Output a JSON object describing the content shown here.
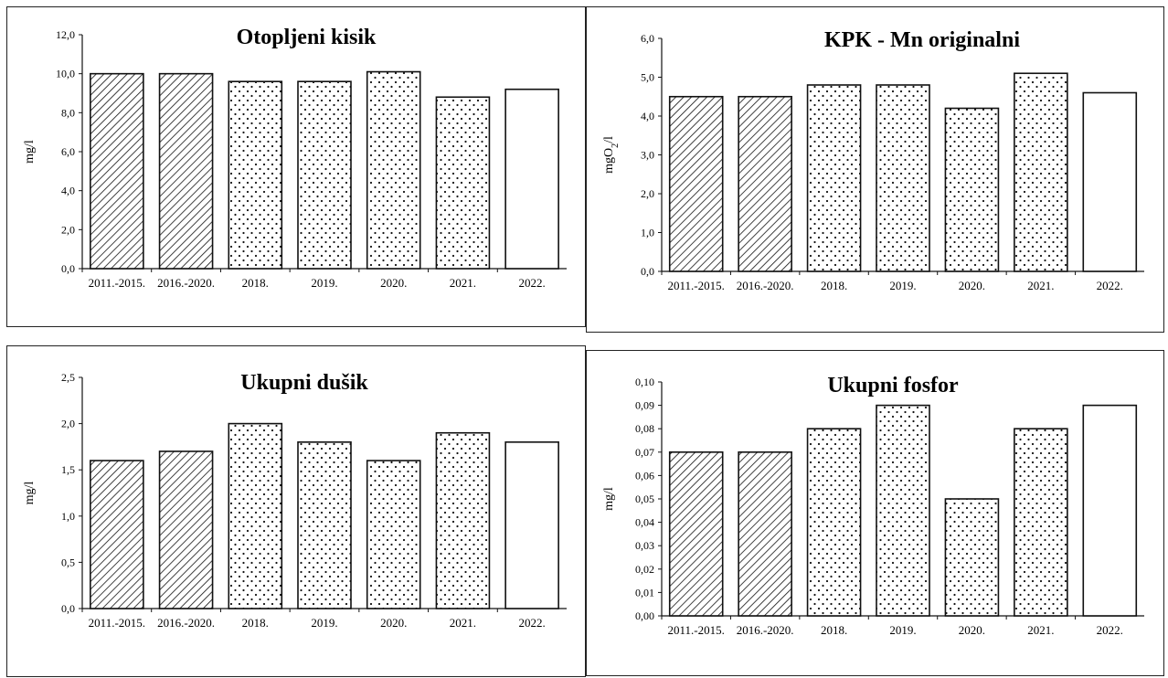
{
  "charts": {
    "chart_data": [
      {
        "type": "bar",
        "title": "Otopljeni kisik",
        "xlabel": "",
        "ylabel": "mg/l",
        "ylabel_sub": "",
        "ylabel_tail": "",
        "categories": [
          "2011.-2015.",
          "2016.-2020.",
          "2018.",
          "2019.",
          "2020.",
          "2021.",
          "2022."
        ],
        "values": [
          10.0,
          10.0,
          9.6,
          9.6,
          10.1,
          8.8,
          9.2
        ],
        "fill_patterns": [
          "hatch",
          "hatch",
          "dots",
          "dots",
          "dots",
          "dots",
          "plain"
        ],
        "ylim": [
          0,
          12
        ],
        "yticks": [
          "0,0",
          "2,0",
          "4,0",
          "6,0",
          "8,0",
          "10,0",
          "12,0"
        ],
        "grid": false,
        "legend": "none"
      },
      {
        "type": "bar",
        "title": "KPK - Mn originalni",
        "xlabel": "",
        "ylabel": "mgO",
        "ylabel_sub": "2",
        "ylabel_tail": "/l",
        "categories": [
          "2011.-2015.",
          "2016.-2020.",
          "2018.",
          "2019.",
          "2020.",
          "2021.",
          "2022."
        ],
        "values": [
          4.5,
          4.5,
          4.8,
          4.8,
          4.2,
          5.1,
          4.6
        ],
        "fill_patterns": [
          "hatch",
          "hatch",
          "dots",
          "dots",
          "dots",
          "dots",
          "plain"
        ],
        "ylim": [
          0,
          6
        ],
        "yticks": [
          "0,0",
          "1,0",
          "2,0",
          "3,0",
          "4,0",
          "5,0",
          "6,0"
        ],
        "grid": false,
        "legend": "none"
      },
      {
        "type": "bar",
        "title": "Ukupni dušik",
        "xlabel": "",
        "ylabel": "mg/l",
        "ylabel_sub": "",
        "ylabel_tail": "",
        "categories": [
          "2011.-2015.",
          "2016.-2020.",
          "2018.",
          "2019.",
          "2020.",
          "2021.",
          "2022."
        ],
        "values": [
          1.6,
          1.7,
          2.0,
          1.8,
          1.6,
          1.9,
          1.8
        ],
        "fill_patterns": [
          "hatch",
          "hatch",
          "dots",
          "dots",
          "dots",
          "dots",
          "plain"
        ],
        "ylim": [
          0,
          2.5
        ],
        "yticks": [
          "0,0",
          "0,5",
          "1,0",
          "1,5",
          "2,0",
          "2,5"
        ],
        "grid": false,
        "legend": "none"
      },
      {
        "type": "bar",
        "title": "Ukupni fosfor",
        "xlabel": "",
        "ylabel": "mg/l",
        "ylabel_sub": "",
        "ylabel_tail": "",
        "categories": [
          "2011.-2015.",
          "2016.-2020.",
          "2018.",
          "2019.",
          "2020.",
          "2021.",
          "2022."
        ],
        "values": [
          0.07,
          0.07,
          0.08,
          0.09,
          0.05,
          0.08,
          0.09
        ],
        "fill_patterns": [
          "hatch",
          "hatch",
          "dots",
          "dots",
          "dots",
          "dots",
          "plain"
        ],
        "ylim": [
          0,
          0.1
        ],
        "yticks": [
          "0,00",
          "0,01",
          "0,02",
          "0,03",
          "0,04",
          "0,05",
          "0,06",
          "0,07",
          "0,08",
          "0,09",
          "0,10"
        ],
        "grid": false,
        "legend": "none"
      }
    ]
  },
  "colors": {
    "stroke": "#111111",
    "bar_fill": "#ffffff",
    "text": "#000000"
  }
}
